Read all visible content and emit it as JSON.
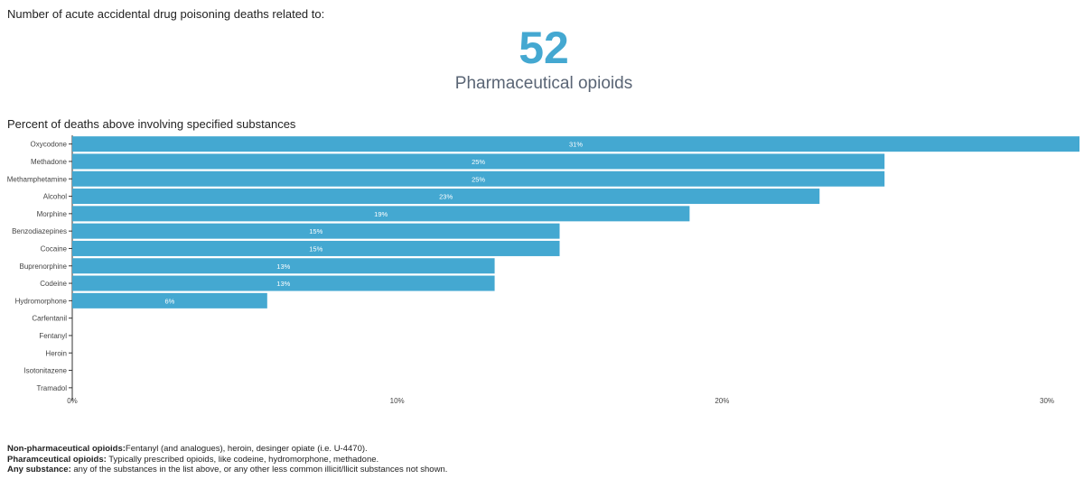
{
  "header": {
    "heading": "Number of acute accidental drug poisoning deaths related to:",
    "count": "52",
    "category": "Pharmaceutical opioids"
  },
  "chart_data": {
    "type": "bar",
    "orientation": "horizontal",
    "title": "Percent of deaths above involving specified substances",
    "categories": [
      "Oxycodone",
      "Methadone",
      "Methamphetamine",
      "Alcohol",
      "Morphine",
      "Benzodiazepines",
      "Cocaine",
      "Buprenorphine",
      "Codeine",
      "Hydromorphone",
      "Carfentanil",
      "Fentanyl",
      "Heroin",
      "Isotonitazene",
      "Tramadol"
    ],
    "values": [
      31,
      25,
      25,
      23,
      19,
      15,
      15,
      13,
      13,
      6,
      0,
      0,
      0,
      0,
      0
    ],
    "data_labels": [
      "31%",
      "25%",
      "25%",
      "23%",
      "19%",
      "15%",
      "15%",
      "13%",
      "13%",
      "6%",
      "",
      "",
      "",
      "",
      ""
    ],
    "x_ticks": [
      0,
      10,
      20,
      30
    ],
    "x_tick_labels": [
      "0%",
      "10%",
      "20%",
      "30%"
    ],
    "xlim": [
      0,
      31
    ],
    "bar_color": "#44a8d1",
    "grid": false
  },
  "notes": [
    {
      "term": "Non-pharmaceutical opioids:",
      "text": "Fentanyl (and analogues), heroin, desinger opiate (i.e. U-4470)."
    },
    {
      "term": "Pharamceutical opioids:",
      "text": " Typically prescribed opioids, like codeine, hydromorphone, methadone."
    },
    {
      "term": "Any substance:",
      "text": " any of the substances in the list above, or any other less common illicit/llicit substances not shown."
    }
  ]
}
